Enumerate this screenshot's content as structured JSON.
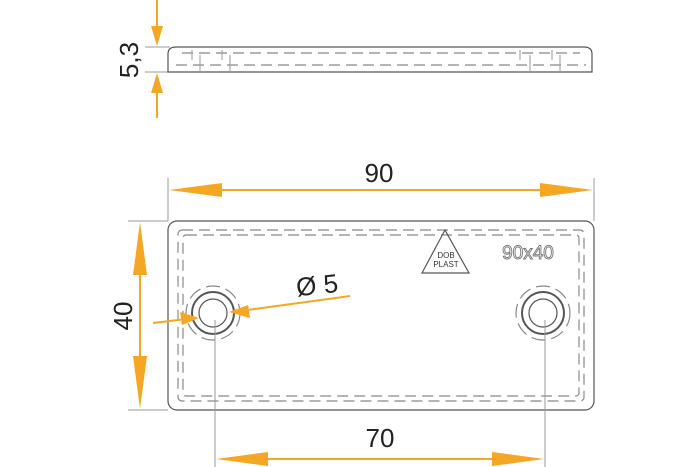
{
  "drawing": {
    "dimensions": {
      "thickness": "5,3",
      "length": "90",
      "width": "40",
      "hole_spacing": "70",
      "hole_diameter": "Ø 5"
    },
    "logo_text": [
      "DOB",
      "PLAST"
    ],
    "size_label": "90x40",
    "colors": {
      "dimension": "#f5a623",
      "outline": "#555555"
    }
  }
}
